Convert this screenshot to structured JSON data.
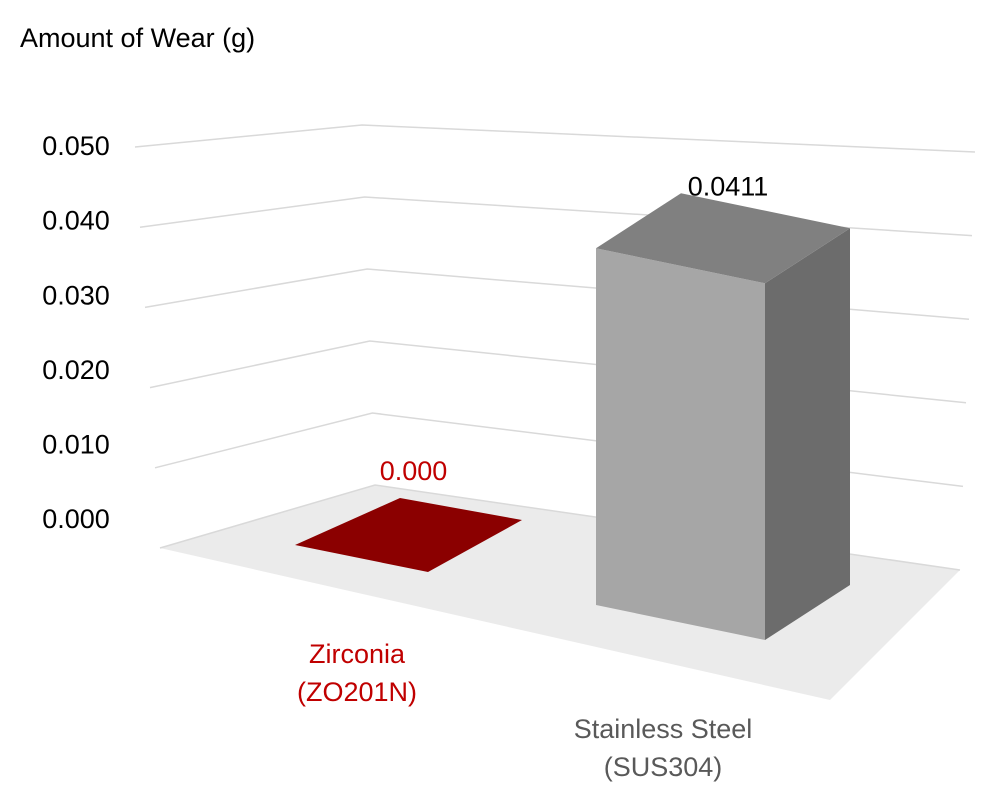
{
  "chart_data": {
    "type": "bar3d",
    "y_label": "Amount of Wear (g)",
    "categories": [
      "Zirconia\n(ZO201N)",
      "Stainless Steel\n(SUS304)"
    ],
    "values": [
      0,
      0.0411
    ],
    "value_labels": [
      "0.000",
      "0.0411"
    ],
    "colors": [
      "#8b0000",
      "#a6a6a6"
    ],
    "category_label_colors": [
      "#c00000",
      "#595959"
    ],
    "value_label_colors": [
      "#c00000",
      "#000000"
    ],
    "ylim": [
      0,
      0.05
    ],
    "yticks": [
      {
        "value": 0,
        "label": "0.000"
      },
      {
        "value": 0.01,
        "label": "0.010"
      },
      {
        "value": 0.02,
        "label": "0.020"
      },
      {
        "value": 0.03,
        "label": "0.030"
      },
      {
        "value": 0.04,
        "label": "0.040"
      },
      {
        "value": 0.05,
        "label": "0.050"
      }
    ],
    "grid": true
  }
}
